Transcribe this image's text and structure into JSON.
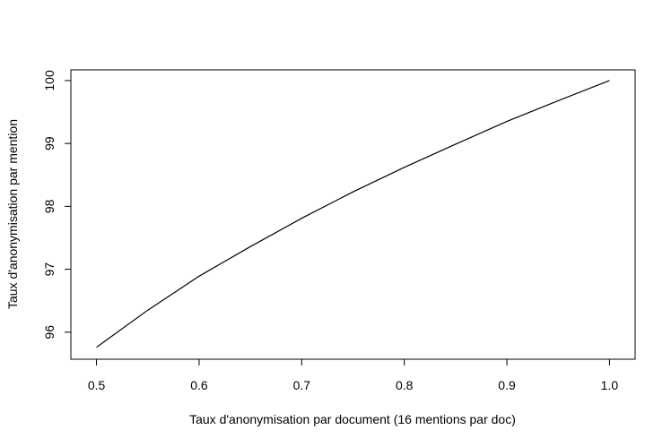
{
  "chart_data": {
    "type": "line",
    "title": "",
    "xlabel": "Taux d'anonymisation par document (16 mentions par doc)",
    "ylabel": "Taux d'anonymisation par mention",
    "xlim": [
      0.475,
      1.025
    ],
    "ylim": [
      95.57,
      100.17
    ],
    "xticks": [
      0.5,
      0.6,
      0.7,
      0.8,
      0.9,
      1.0
    ],
    "xtick_labels": [
      "0.5",
      "0.6",
      "0.7",
      "0.8",
      "0.9",
      "1.0"
    ],
    "yticks": [
      96,
      97,
      98,
      99,
      100
    ],
    "ytick_labels": [
      "96",
      "97",
      "98",
      "99",
      "100"
    ],
    "grid": false,
    "line_color": "#000000",
    "series": [
      {
        "x": [
          0.5,
          0.55,
          0.6,
          0.65,
          0.7,
          0.75,
          0.8,
          0.85,
          0.9,
          0.95,
          1.0
        ],
        "y": [
          95.76,
          96.35,
          96.89,
          97.36,
          97.81,
          98.23,
          98.62,
          98.99,
          99.35,
          99.68,
          100.0
        ]
      }
    ]
  }
}
